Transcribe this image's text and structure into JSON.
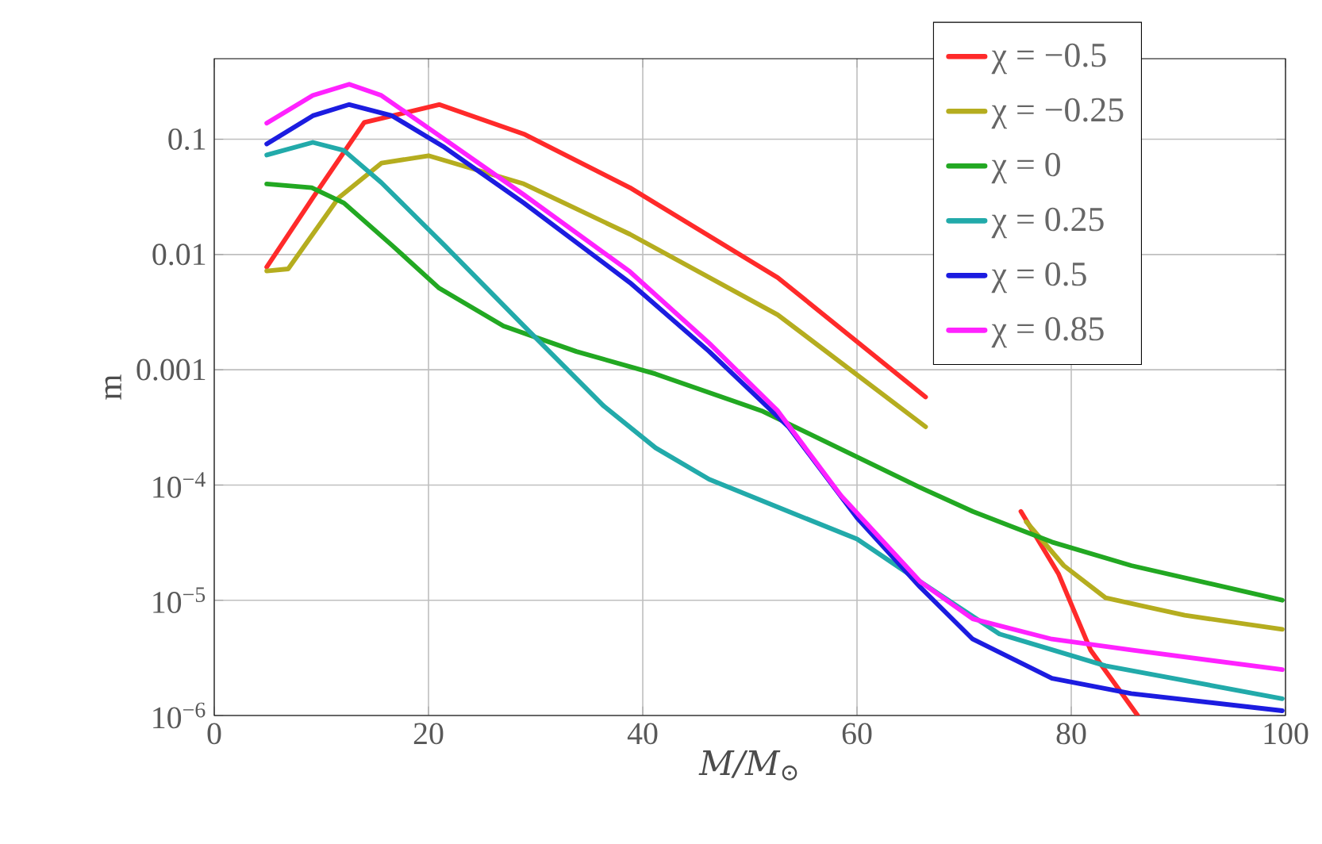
{
  "chart_data": {
    "type": "line",
    "xlabel": "M/M$_{⊙}$",
    "ylabel": "m",
    "log": "y",
    "grid": true,
    "legend": "top right",
    "line_style": "solid",
    "xlim": [
      0,
      100
    ],
    "ylim": [
      1e-06,
      0.5
    ],
    "xticks": [
      0,
      20,
      40,
      60,
      80,
      100
    ],
    "yticks": [
      {
        "value": 1e-06,
        "label": "10$^{−6}$"
      },
      {
        "value": 1e-05,
        "label": "10$^{−5}$"
      },
      {
        "value": 0.0001,
        "label": "10$^{−4}$"
      },
      {
        "value": 0.001,
        "label": "0.001"
      },
      {
        "value": 0.01,
        "label": "0.01"
      },
      {
        "value": 0.1,
        "label": "0.1"
      }
    ],
    "series": [
      {
        "name": "χ = −0.5",
        "color": "#ff2a2a",
        "x": [
          4.9,
          9.2,
          14,
          21,
          29,
          38.8,
          52.6,
          66.4,
          70,
          75.3,
          78.8,
          81.8,
          86.2
        ],
        "values": [
          0.0078,
          0.031,
          0.14,
          0.2,
          0.11,
          0.038,
          0.0063,
          0.00058,
          null,
          5.9e-05,
          1.7e-05,
          3.7e-06,
          1e-06
        ]
      },
      {
        "name": "χ = −0.25",
        "color": "#b5ad1f",
        "x": [
          4.9,
          6.9,
          11.6,
          15.6,
          20,
          28.9,
          38.8,
          52.6,
          66.4,
          70,
          75.8,
          79.3,
          83.2,
          90.6,
          99.7
        ],
        "values": [
          0.0072,
          0.0075,
          0.031,
          0.062,
          0.072,
          0.041,
          0.015,
          0.003,
          0.00032,
          null,
          4.8e-05,
          2e-05,
          1.05e-05,
          7.4e-06,
          5.6e-06
        ]
      },
      {
        "name": "χ = 0",
        "color": "#22a822",
        "x": [
          4.9,
          9.1,
          12.1,
          16.6,
          21,
          27,
          33.8,
          41.2,
          51.1,
          65.9,
          70.8,
          78.2,
          85.6,
          99.7
        ],
        "values": [
          0.041,
          0.038,
          0.028,
          0.012,
          0.0051,
          0.0024,
          0.00144,
          0.00092,
          0.00044,
          9.5e-05,
          5.9e-05,
          3.2e-05,
          2e-05,
          1e-05
        ]
      },
      {
        "name": "χ = 0.25",
        "color": "#22aaaa",
        "x": [
          4.9,
          9.2,
          12.1,
          15.6,
          21.5,
          28.9,
          36.3,
          41.2,
          46.2,
          53.6,
          60,
          65.9,
          73.3,
          83.2,
          99.7
        ],
        "values": [
          0.073,
          0.094,
          0.08,
          0.042,
          0.012,
          0.0024,
          0.00049,
          0.00021,
          0.000112,
          5.9e-05,
          3.4e-05,
          1.45e-05,
          5.1e-06,
          2.7e-06,
          1.4e-06
        ]
      },
      {
        "name": "χ = 0.5",
        "color": "#1c1ce0",
        "x": [
          4.9,
          9.2,
          12.6,
          16.6,
          21.5,
          28.9,
          38.8,
          46.2,
          53.6,
          60,
          65.9,
          70.8,
          78.2,
          85.6,
          99.7
        ],
        "values": [
          0.091,
          0.16,
          0.2,
          0.16,
          0.085,
          0.028,
          0.0057,
          0.00144,
          0.00032,
          5.2e-05,
          1.3e-05,
          4.6e-06,
          2.1e-06,
          1.55e-06,
          1.1e-06
        ]
      },
      {
        "name": "χ = 0.85",
        "color": "#ff22ff",
        "x": [
          4.9,
          9.2,
          12.6,
          15.6,
          21.5,
          28.9,
          38.8,
          46.2,
          52.6,
          58.5,
          65.9,
          70.8,
          78.2,
          85.6,
          99.7
        ],
        "values": [
          0.138,
          0.24,
          0.3,
          0.24,
          0.1,
          0.033,
          0.0071,
          0.0017,
          0.00044,
          8.1e-05,
          1.45e-05,
          6.9e-06,
          4.6e-06,
          3.7e-06,
          2.5e-06
        ]
      }
    ]
  }
}
